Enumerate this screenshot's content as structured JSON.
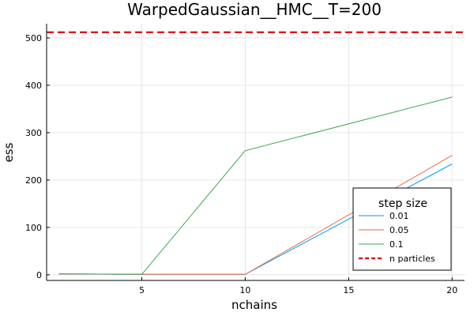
{
  "chart_data": {
    "type": "line",
    "title": "WarpedGaussian__HMC__T=200",
    "xlabel": "nchains",
    "ylabel": "ess",
    "x": [
      1,
      5,
      10,
      20
    ],
    "xlim": [
      0.4,
      20.6
    ],
    "ylim": [
      -12,
      530
    ],
    "xticks": [
      5,
      10,
      15,
      20
    ],
    "yticks": [
      0,
      100,
      200,
      300,
      400,
      500
    ],
    "grid": true,
    "legend": {
      "title": "step size",
      "position": "bottom-right"
    },
    "series": [
      {
        "name": "0.01",
        "color": "#009af9",
        "values": [
          1.6,
          0.8,
          0.8,
          234
        ]
      },
      {
        "name": "0.05",
        "color": "#e26f46",
        "values": [
          1.6,
          0.8,
          0.8,
          252
        ]
      },
      {
        "name": "0.1",
        "color": "#3da44d",
        "values": [
          1.6,
          0.8,
          262,
          375
        ]
      }
    ],
    "hlines": [
      {
        "name": "n particles",
        "color": "#e00000",
        "style": "dashed",
        "y": 512
      }
    ]
  }
}
